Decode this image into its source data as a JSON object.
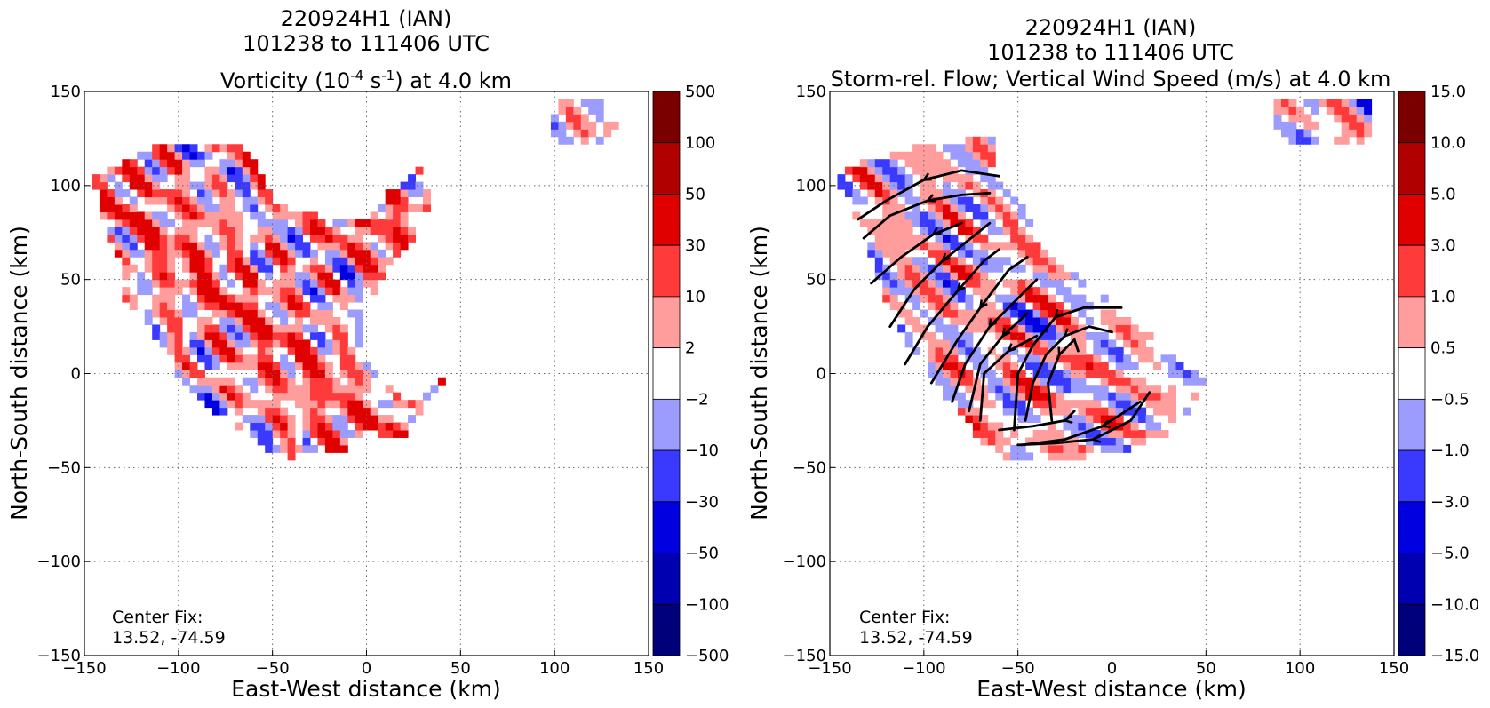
{
  "chart_data": [
    {
      "type": "heatmap",
      "title_lines": [
        "220924H1 (IAN)",
        "101238 to 111406 UTC"
      ],
      "title_var_prefix": "Vorticity (10",
      "title_var_exp1": "-4",
      "title_var_mid": " s",
      "title_var_exp2": "-1",
      "title_var_suffix": ") at 4.0 km",
      "xlabel": "East-West distance (km)",
      "ylabel": "North-South distance (km)",
      "xlim": [
        -150,
        150
      ],
      "ylim": [
        -150,
        150
      ],
      "x_ticks": [
        "−150",
        "−100",
        "−50",
        "0",
        "50",
        "100",
        "150"
      ],
      "y_ticks": [
        "150",
        "100",
        "50",
        "0",
        "−50",
        "−100",
        "−150"
      ],
      "grid": true,
      "annotation": {
        "line1": "Center Fix:",
        "line2": "13.52, -74.59"
      },
      "colorbar": {
        "labels": [
          "500",
          "100",
          "50",
          "30",
          "10",
          "2",
          "−2",
          "−10",
          "−30",
          "−50",
          "−100",
          "−500"
        ],
        "colors": [
          "#7a0000",
          "#b00000",
          "#e00000",
          "#ff3a3a",
          "#ff9c9c",
          "#ffffff",
          "#9c9cff",
          "#3a3aff",
          "#0000e0",
          "#0000b0",
          "#00007a"
        ]
      }
    },
    {
      "type": "heatmap",
      "title_lines": [
        "220924H1 (IAN)",
        "101238 to 111406 UTC",
        "Storm-rel. Flow; Vertical Wind Speed (m/s) at 4.0 km"
      ],
      "xlabel": "East-West distance (km)",
      "ylabel": "North-South distance (km)",
      "xlim": [
        -150,
        150
      ],
      "ylim": [
        -150,
        150
      ],
      "x_ticks": [
        "−150",
        "−100",
        "−50",
        "0",
        "50",
        "100",
        "150"
      ],
      "y_ticks": [
        "150",
        "100",
        "50",
        "0",
        "−50",
        "−100",
        "−150"
      ],
      "grid": true,
      "annotation": {
        "line1": "Center Fix:",
        "line2": "13.52, -74.59"
      },
      "colorbar": {
        "labels": [
          "15.0",
          "10.0",
          "5.0",
          "3.0",
          "1.0",
          "0.5",
          "−0.5",
          "−1.0",
          "−3.0",
          "−5.0",
          "−10.0",
          "−15.0"
        ],
        "colors": [
          "#7a0000",
          "#b00000",
          "#e00000",
          "#ff3a3a",
          "#ff9c9c",
          "#ffffff",
          "#9c9cff",
          "#3a3aff",
          "#0000e0",
          "#0000b0",
          "#00007a"
        ]
      }
    }
  ]
}
